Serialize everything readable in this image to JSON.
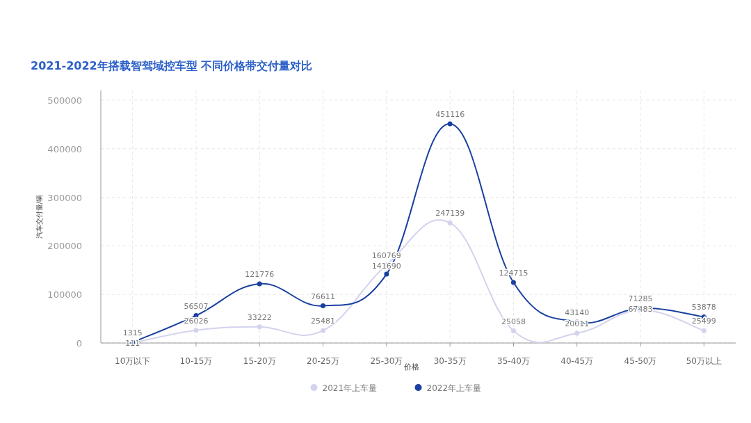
{
  "chart_data": {
    "type": "line",
    "title": "2021-2022年搭载智驾域控车型 不同价格带交付量对比",
    "xlabel": "价格",
    "ylabel": "汽车交付量/辆",
    "categories": [
      "10万以下",
      "10-15万",
      "15-20万",
      "20-25万",
      "25-30万",
      "30-35万",
      "35-40万",
      "40-45万",
      "45-50万",
      "50万以上"
    ],
    "series": [
      {
        "name": "2021年上车量",
        "color": "#d3d3ee",
        "values": [
          111,
          26026,
          33222,
          25481,
          160769,
          247139,
          25058,
          20011,
          67483,
          25499
        ]
      },
      {
        "name": "2022年上车量",
        "color": "#1a40a0",
        "values": [
          1315,
          56507,
          121776,
          76611,
          141690,
          451116,
          124715,
          43140,
          71285,
          53878
        ]
      }
    ],
    "ylim": [
      0,
      520000
    ],
    "yticks": [
      0,
      100000,
      200000,
      300000,
      400000,
      500000
    ],
    "grid": true,
    "legend": "bottom",
    "marker": "circle",
    "line_style": "solid",
    "data_labels": true
  }
}
